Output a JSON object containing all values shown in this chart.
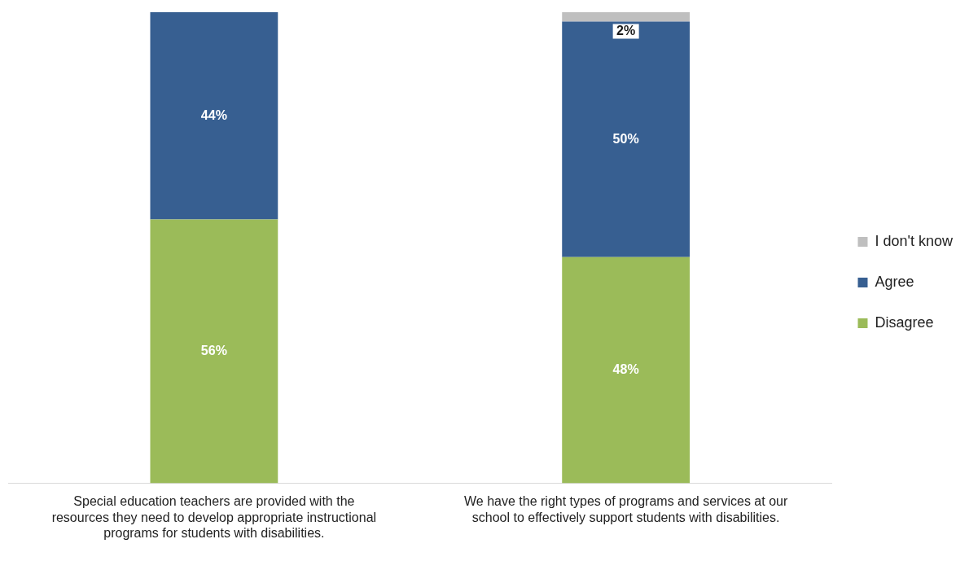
{
  "chart_data": {
    "type": "bar",
    "stacked": true,
    "tick_labels": "x",
    "categories": [
      "Special education teachers are provided with the resources they need to develop appropriate instructional programs for students with disabilities.",
      "We have the right types of programs and services at our school to effectively support students with disabilities."
    ],
    "series": [
      {
        "name": "Disagree",
        "color": "#9bbb59",
        "values": [
          56,
          48
        ],
        "value_labels": [
          "56%",
          "48%"
        ]
      },
      {
        "name": "Agree",
        "color": "#375f91",
        "values": [
          44,
          50
        ],
        "value_labels": [
          "44%",
          "50%"
        ]
      },
      {
        "name": "I don't know",
        "color": "#bfbfbf",
        "values": [
          null,
          2
        ],
        "value_labels": [
          null,
          "2%"
        ]
      }
    ],
    "legend": "right",
    "grid": false
  }
}
